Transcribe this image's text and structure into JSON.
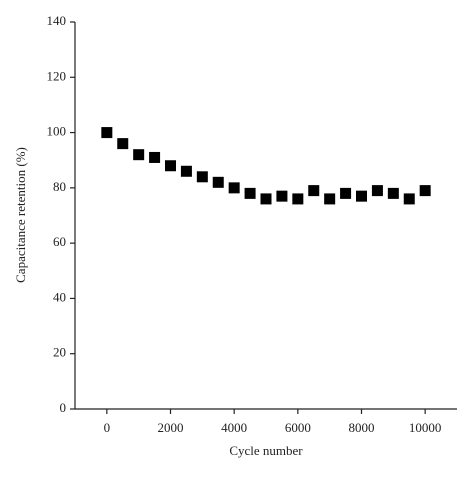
{
  "chart_data": {
    "type": "scatter",
    "x_label": "Cycle number",
    "y_label": "Capacitance retention (%)",
    "marker": "square",
    "color": "#000000",
    "x": [
      0,
      500,
      1000,
      1500,
      2000,
      2500,
      3000,
      3500,
      4000,
      4500,
      5000,
      5500,
      6000,
      6500,
      7000,
      7500,
      8000,
      8500,
      9000,
      9500,
      10000
    ],
    "values": [
      100,
      96,
      92,
      91,
      88,
      86,
      84,
      82,
      80,
      78,
      76,
      77,
      76,
      79,
      76,
      78,
      77,
      79,
      78,
      76,
      79
    ],
    "xlim": [
      -1000,
      11000
    ],
    "xticks": [
      0,
      2000,
      4000,
      6000,
      8000,
      10000
    ],
    "ylim": [
      0,
      140
    ],
    "yticks": [
      0,
      20,
      40,
      60,
      80,
      100,
      120,
      140
    ],
    "grid": false
  }
}
